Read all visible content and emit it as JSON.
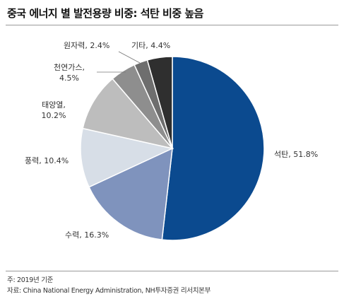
{
  "chart_data": {
    "type": "pie",
    "title": "중국 에너지 별 발전용량 비중: 석탄 비중 높음",
    "slices": [
      {
        "name": "석탄",
        "value": 51.8,
        "label": "석탄, 51.8%",
        "color": "#0b4a8f"
      },
      {
        "name": "수력",
        "value": 16.3,
        "label": "수력, 16.3%",
        "color": "#7f93bd"
      },
      {
        "name": "풍력",
        "value": 10.4,
        "label": "풍력, 10.4%",
        "color": "#d7dee7"
      },
      {
        "name": "태양열",
        "value": 10.2,
        "label_lines": [
          "태양열,",
          "10.2%"
        ],
        "color": "#bdbdbd"
      },
      {
        "name": "천연가스",
        "value": 4.5,
        "label_lines": [
          "천연가스,",
          "4.5%"
        ],
        "color": "#8e8e8e"
      },
      {
        "name": "원자력",
        "value": 2.4,
        "label": "원자력, 2.4%",
        "color": "#6e6e6e"
      },
      {
        "name": "기타",
        "value": 4.4,
        "label": "기타, 4.4%",
        "color": "#2f2f2f"
      }
    ]
  },
  "notes": {
    "basis": "주: 2019년 기준",
    "source": "자료: China National Energy Administration, NH투자증권 리서치본부"
  }
}
